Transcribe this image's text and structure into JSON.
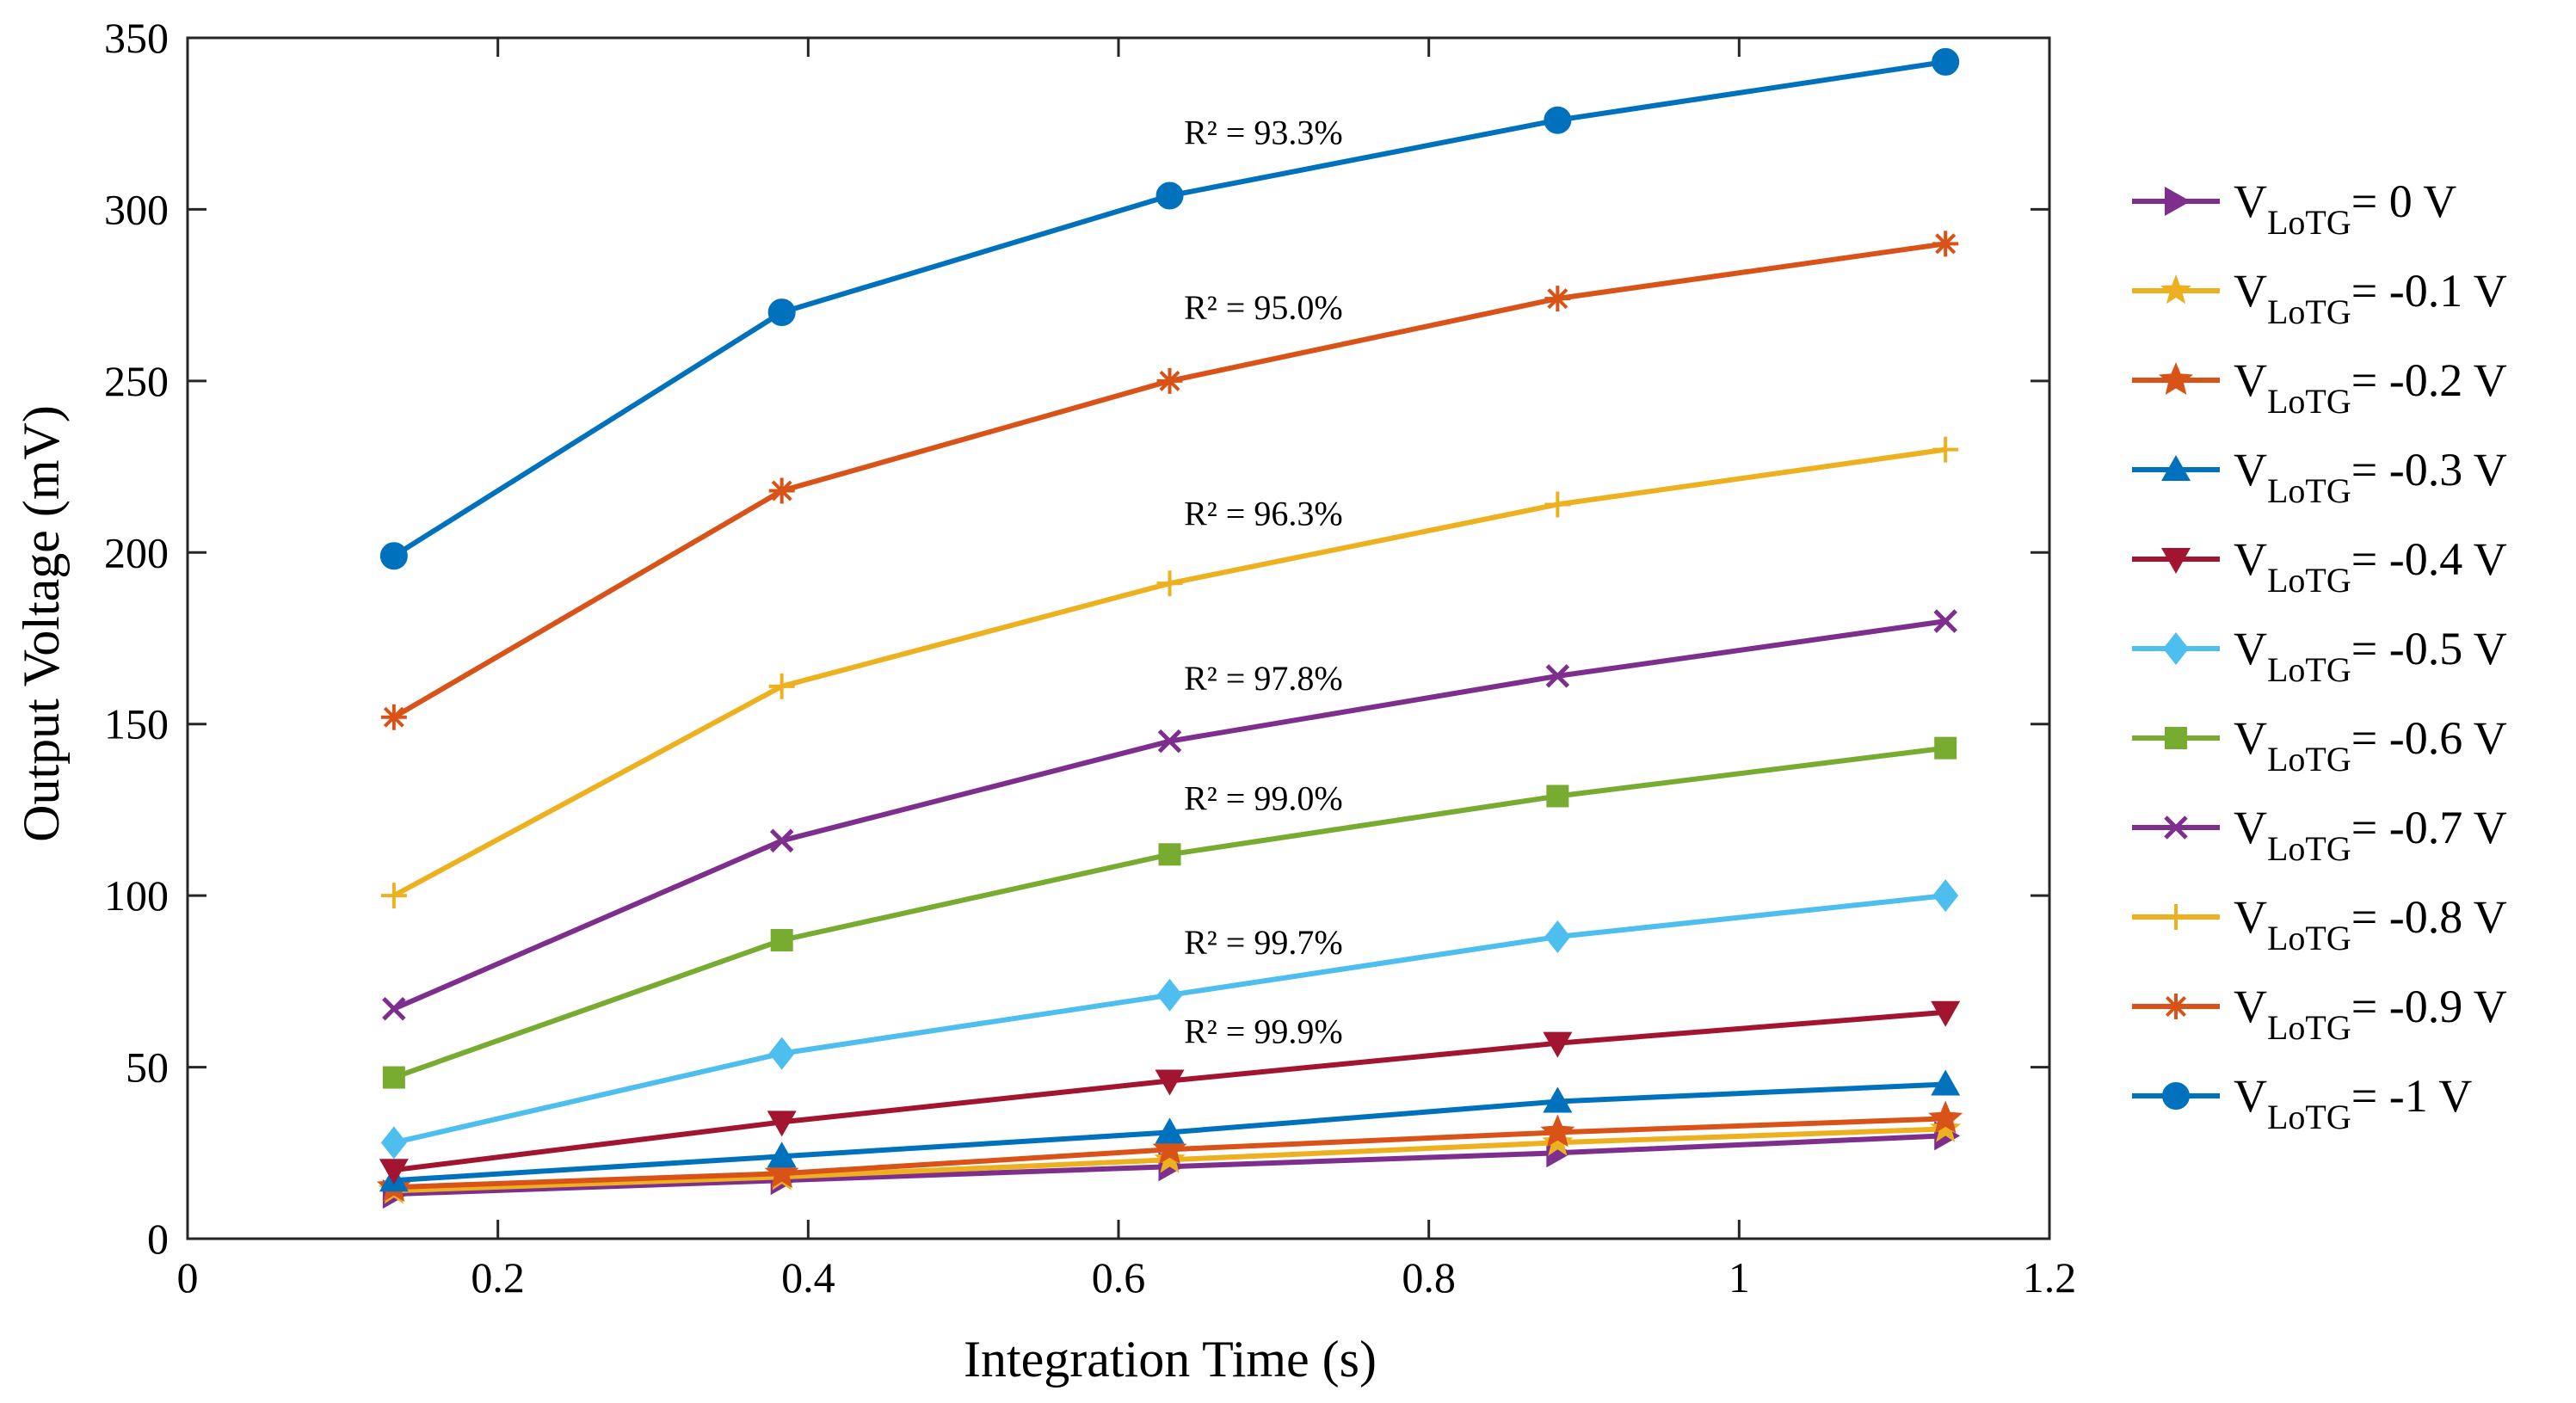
{
  "chart_data": {
    "type": "line",
    "xlabel": "Integration Time (s)",
    "ylabel": "Output Voltage (mV)",
    "xlim": [
      0,
      1.2
    ],
    "ylim": [
      0,
      350
    ],
    "xticks": [
      0,
      0.2,
      0.4,
      0.6,
      0.8,
      1,
      1.2
    ],
    "yticks": [
      0,
      50,
      100,
      150,
      200,
      250,
      300,
      350
    ],
    "xtick_labels": [
      "0",
      "0.2",
      "0.4",
      "0.6",
      "0.8",
      "1",
      "1.2"
    ],
    "ytick_labels": [
      "0",
      "50",
      "100",
      "150",
      "200",
      "250",
      "300",
      "350"
    ],
    "grid": false,
    "legend_position": "right",
    "x": [
      0.133,
      0.383,
      0.633,
      0.883,
      1.133
    ],
    "series": [
      {
        "name": "VLoTG= 0 V",
        "legend_main": "V",
        "legend_sub": "LoTG",
        "legend_tail": "= 0 V",
        "color": "#7E2F8E",
        "marker": "triangle-right",
        "values": [
          13,
          17,
          21,
          25,
          30
        ]
      },
      {
        "name": "VLoTG= -0.1 V",
        "legend_main": "V",
        "legend_sub": "LoTG",
        "legend_tail": "= -0.1 V",
        "color": "#EDB120",
        "marker": "pentagram",
        "values": [
          14,
          18,
          23,
          28,
          32
        ]
      },
      {
        "name": "VLoTG= -0.2 V",
        "legend_main": "V",
        "legend_sub": "LoTG",
        "legend_tail": "= -0.2 V",
        "color": "#D95319",
        "marker": "star",
        "values": [
          15,
          19,
          26,
          31,
          35
        ]
      },
      {
        "name": "VLoTG= -0.3 V",
        "legend_main": "V",
        "legend_sub": "LoTG",
        "legend_tail": "= -0.3 V",
        "color": "#0072BD",
        "marker": "triangle-up",
        "values": [
          17,
          24,
          31,
          40,
          45
        ]
      },
      {
        "name": "VLoTG= -0.4 V",
        "legend_main": "V",
        "legend_sub": "LoTG",
        "legend_tail": "= -0.4 V",
        "color": "#A2142F",
        "marker": "triangle-down",
        "values": [
          20,
          34,
          46,
          57,
          66
        ]
      },
      {
        "name": "VLoTG= -0.5 V",
        "legend_main": "V",
        "legend_sub": "LoTG",
        "legend_tail": "= -0.5 V",
        "color": "#4DBEEE",
        "marker": "diamond",
        "values": [
          28,
          54,
          71,
          88,
          100
        ]
      },
      {
        "name": "VLoTG= -0.6 V",
        "legend_main": "V",
        "legend_sub": "LoTG",
        "legend_tail": "= -0.6 V",
        "color": "#77AC30",
        "marker": "square",
        "values": [
          47,
          87,
          112,
          129,
          143
        ]
      },
      {
        "name": "VLoTG= -0.7 V",
        "legend_main": "V",
        "legend_sub": "LoTG",
        "legend_tail": "= -0.7 V",
        "color": "#7E2F8E",
        "marker": "x",
        "values": [
          67,
          116,
          145,
          164,
          180
        ]
      },
      {
        "name": "VLoTG= -0.8 V",
        "legend_main": "V",
        "legend_sub": "LoTG",
        "legend_tail": "= -0.8 V",
        "color": "#EDB120",
        "marker": "plus",
        "values": [
          100,
          161,
          191,
          214,
          230
        ]
      },
      {
        "name": "VLoTG= -0.9 V",
        "legend_main": "V",
        "legend_sub": "LoTG",
        "legend_tail": "= -0.9 V",
        "color": "#D95319",
        "marker": "asterisk",
        "values": [
          152,
          218,
          250,
          274,
          290
        ]
      },
      {
        "name": "VLoTG= -1 V",
        "legend_main": "V",
        "legend_sub": "LoTG",
        "legend_tail": "= -1 V",
        "color": "#0072BD",
        "marker": "circle",
        "values": [
          199,
          270,
          304,
          326,
          343
        ]
      }
    ],
    "annotations": [
      {
        "text": "R² = 93.3%",
        "x": 0.64,
        "y": 319
      },
      {
        "text": "R² = 95.0%",
        "x": 0.64,
        "y": 268
      },
      {
        "text": "R² = 96.3%",
        "x": 0.64,
        "y": 208
      },
      {
        "text": "R² = 97.8%",
        "x": 0.64,
        "y": 160
      },
      {
        "text": "R² = 99.0%",
        "x": 0.64,
        "y": 125
      },
      {
        "text": "R² = 99.7%",
        "x": 0.64,
        "y": 83
      },
      {
        "text": "R² = 99.9%",
        "x": 0.64,
        "y": 57
      }
    ]
  }
}
